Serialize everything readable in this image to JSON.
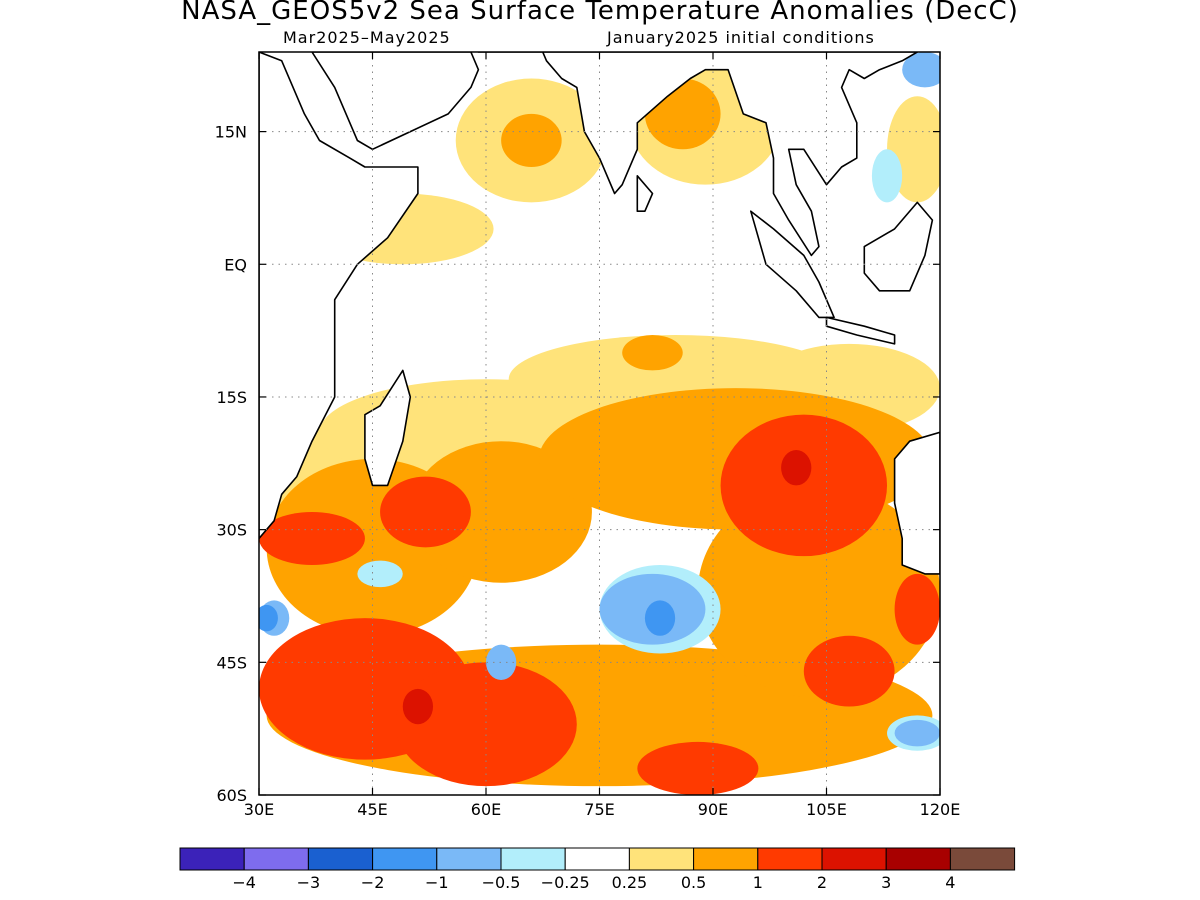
{
  "title": "NASA_GEOS5v2 Sea Surface Temperature Anomalies (DecC)",
  "subtitle_left": "Mar2025–May2025",
  "subtitle_right": "January2025 initial conditions",
  "map": {
    "lon_range": [
      30,
      120
    ],
    "lat_range": [
      -60,
      24
    ],
    "lon_ticks": [
      {
        "value": 30,
        "label": "30E"
      },
      {
        "value": 45,
        "label": "45E"
      },
      {
        "value": 60,
        "label": "60E"
      },
      {
        "value": 75,
        "label": "75E"
      },
      {
        "value": 90,
        "label": "90E"
      },
      {
        "value": 105,
        "label": "105E"
      },
      {
        "value": 120,
        "label": "120E"
      }
    ],
    "lat_ticks": [
      {
        "value": 15,
        "label": "15N"
      },
      {
        "value": 0,
        "label": "EQ"
      },
      {
        "value": -15,
        "label": "15S"
      },
      {
        "value": -30,
        "label": "30S"
      },
      {
        "value": -45,
        "label": "45S"
      },
      {
        "value": -60,
        "label": "60S"
      }
    ],
    "grid": "dotted"
  },
  "colorbar": {
    "colors": [
      "#3b22b9",
      "#7e6cee",
      "#1a60d0",
      "#3f96f2",
      "#7ab9f7",
      "#b2eefb",
      "#ffffff",
      "#ffe37a",
      "#ffa300",
      "#ff3a00",
      "#dc1200",
      "#a80000",
      "#7a4a3a"
    ],
    "labels": [
      "−4",
      "−3",
      "−2",
      "−1",
      "−0.5",
      "−0.25",
      "0.25",
      "0.5",
      "1",
      "2",
      "3",
      "4"
    ]
  },
  "anomaly_fields": [
    {
      "level": "0.5",
      "color": "#ffe37a",
      "blobs": [
        {
          "lon": 37,
          "lat": -24,
          "rx": 6,
          "ry": 6
        },
        {
          "lon": 60,
          "lat": -19,
          "rx": 22,
          "ry": 6
        },
        {
          "lon": 85,
          "lat": -13,
          "rx": 22,
          "ry": 5
        },
        {
          "lon": 108,
          "lat": -14,
          "rx": 12,
          "ry": 5
        },
        {
          "lon": 49,
          "lat": 4,
          "rx": 12,
          "ry": 4
        },
        {
          "lon": 66,
          "lat": 14,
          "rx": 10,
          "ry": 7
        },
        {
          "lon": 89,
          "lat": 16,
          "rx": 10,
          "ry": 7
        },
        {
          "lon": 117,
          "lat": 13,
          "rx": 4,
          "ry": 6
        }
      ]
    },
    {
      "level": "1",
      "color": "#ffa300",
      "blobs": [
        {
          "lon": 45,
          "lat": -32,
          "rx": 14,
          "ry": 10
        },
        {
          "lon": 62,
          "lat": -28,
          "rx": 12,
          "ry": 8
        },
        {
          "lon": 93,
          "lat": -22,
          "rx": 26,
          "ry": 8
        },
        {
          "lon": 75,
          "lat": -51,
          "rx": 44,
          "ry": 8
        },
        {
          "lon": 104,
          "lat": -37,
          "rx": 16,
          "ry": 12
        },
        {
          "lon": 82,
          "lat": -10,
          "rx": 4,
          "ry": 2
        },
        {
          "lon": 66,
          "lat": 14,
          "rx": 4,
          "ry": 3
        },
        {
          "lon": 86,
          "lat": 17,
          "rx": 5,
          "ry": 4
        }
      ]
    },
    {
      "level": "2",
      "color": "#ff3a00",
      "blobs": [
        {
          "lon": 44,
          "lat": -48,
          "rx": 14,
          "ry": 8
        },
        {
          "lon": 60,
          "lat": -52,
          "rx": 12,
          "ry": 7
        },
        {
          "lon": 37,
          "lat": -31,
          "rx": 7,
          "ry": 3
        },
        {
          "lon": 52,
          "lat": -28,
          "rx": 6,
          "ry": 4
        },
        {
          "lon": 102,
          "lat": -25,
          "rx": 11,
          "ry": 8
        },
        {
          "lon": 108,
          "lat": -46,
          "rx": 6,
          "ry": 4
        },
        {
          "lon": 117,
          "lat": -39,
          "rx": 3,
          "ry": 4
        },
        {
          "lon": 88,
          "lat": -57,
          "rx": 8,
          "ry": 3
        }
      ]
    },
    {
      "level": "3",
      "color": "#dc1200",
      "blobs": [
        {
          "lon": 101,
          "lat": -23,
          "rx": 2,
          "ry": 2
        },
        {
          "lon": 51,
          "lat": -50,
          "rx": 2,
          "ry": 2
        }
      ]
    },
    {
      "level": "-0.25",
      "color": "#b2eefb",
      "blobs": [
        {
          "lon": 83,
          "lat": -39,
          "rx": 8,
          "ry": 5
        },
        {
          "lon": 46,
          "lat": -35,
          "rx": 3,
          "ry": 1.5
        },
        {
          "lon": 117,
          "lat": -53,
          "rx": 4,
          "ry": 2
        },
        {
          "lon": 113,
          "lat": 10,
          "rx": 2,
          "ry": 3
        }
      ]
    },
    {
      "level": "-0.5",
      "color": "#7ab9f7",
      "blobs": [
        {
          "lon": 82,
          "lat": -39,
          "rx": 7,
          "ry": 4
        },
        {
          "lon": 62,
          "lat": -45,
          "rx": 2,
          "ry": 2
        },
        {
          "lon": 32,
          "lat": -40,
          "rx": 2,
          "ry": 2
        },
        {
          "lon": 117,
          "lat": -53,
          "rx": 3,
          "ry": 1.5
        },
        {
          "lon": 118,
          "lat": 22,
          "rx": 3,
          "ry": 2
        }
      ]
    },
    {
      "level": "-1",
      "color": "#3f96f2",
      "blobs": [
        {
          "lon": 83,
          "lat": -40,
          "rx": 2,
          "ry": 2
        },
        {
          "lon": 31,
          "lat": -40,
          "rx": 1.5,
          "ry": 1.5
        }
      ]
    }
  ],
  "land": [
    {
      "name": "Africa",
      "points": [
        [
          30,
          24
        ],
        [
          33,
          23
        ],
        [
          36,
          17
        ],
        [
          38,
          14
        ],
        [
          42,
          12
        ],
        [
          44,
          11
        ],
        [
          48,
          11
        ],
        [
          51,
          11
        ],
        [
          51,
          8
        ],
        [
          47,
          3
        ],
        [
          43,
          0
        ],
        [
          40,
          -4
        ],
        [
          40,
          -10
        ],
        [
          40,
          -15
        ],
        [
          37,
          -20
        ],
        [
          35,
          -24
        ],
        [
          33,
          -26
        ],
        [
          32,
          -29
        ],
        [
          30,
          -31
        ],
        [
          30,
          24
        ]
      ]
    },
    {
      "name": "Arabia",
      "points": [
        [
          37,
          24
        ],
        [
          40,
          20
        ],
        [
          43,
          14
        ],
        [
          45,
          13
        ],
        [
          50,
          15
        ],
        [
          55,
          17
        ],
        [
          58,
          20
        ],
        [
          59,
          22
        ],
        [
          58,
          24
        ],
        [
          37,
          24
        ]
      ]
    },
    {
      "name": "Asia-west",
      "points": [
        [
          59,
          24
        ],
        [
          63,
          25
        ],
        [
          67,
          25
        ],
        [
          68,
          23
        ],
        [
          70,
          21
        ],
        [
          72,
          20
        ],
        [
          73,
          15
        ],
        [
          75,
          12
        ],
        [
          77,
          8
        ],
        [
          78,
          9
        ],
        [
          80,
          13
        ],
        [
          80,
          16
        ],
        [
          84,
          19
        ],
        [
          87,
          21
        ],
        [
          89,
          22
        ],
        [
          92,
          22
        ],
        [
          94,
          17
        ],
        [
          97,
          16
        ],
        [
          98,
          12
        ],
        [
          98,
          8
        ],
        [
          100,
          5
        ],
        [
          103,
          1
        ],
        [
          104,
          2
        ],
        [
          103,
          6
        ],
        [
          101,
          9
        ],
        [
          100,
          13
        ],
        [
          102,
          13
        ],
        [
          105,
          9
        ],
        [
          107,
          11
        ],
        [
          109,
          12
        ],
        [
          109,
          16
        ],
        [
          107,
          20
        ],
        [
          108,
          22
        ],
        [
          110,
          21
        ],
        [
          112,
          22
        ],
        [
          115,
          23
        ],
        [
          117,
          24
        ],
        [
          59,
          24
        ]
      ]
    },
    {
      "name": "Madagascar",
      "points": [
        [
          49,
          -12
        ],
        [
          50,
          -15
        ],
        [
          49,
          -20
        ],
        [
          47,
          -25
        ],
        [
          45,
          -25
        ],
        [
          44,
          -22
        ],
        [
          44,
          -17
        ],
        [
          46,
          -16
        ],
        [
          49,
          -12
        ]
      ]
    },
    {
      "name": "Sri Lanka",
      "points": [
        [
          80,
          10
        ],
        [
          82,
          8
        ],
        [
          81,
          6
        ],
        [
          80,
          6
        ],
        [
          80,
          10
        ]
      ]
    },
    {
      "name": "Sumatra",
      "points": [
        [
          95,
          6
        ],
        [
          98,
          4
        ],
        [
          102,
          1
        ],
        [
          104,
          -2
        ],
        [
          106,
          -6
        ],
        [
          104,
          -6
        ],
        [
          101,
          -3
        ],
        [
          97,
          0
        ],
        [
          95,
          6
        ]
      ]
    },
    {
      "name": "Borneo",
      "points": [
        [
          110,
          2
        ],
        [
          114,
          4
        ],
        [
          117,
          7
        ],
        [
          119,
          5
        ],
        [
          118,
          1
        ],
        [
          116,
          -3
        ],
        [
          112,
          -3
        ],
        [
          110,
          -1
        ],
        [
          110,
          2
        ]
      ]
    },
    {
      "name": "Java",
      "points": [
        [
          105,
          -6
        ],
        [
          110,
          -7
        ],
        [
          114,
          -8
        ],
        [
          114,
          -9
        ],
        [
          109,
          -8
        ],
        [
          105,
          -7
        ],
        [
          105,
          -6
        ]
      ]
    },
    {
      "name": "Australia",
      "points": [
        [
          114,
          -22
        ],
        [
          116,
          -20
        ],
        [
          120,
          -19
        ],
        [
          120,
          -35
        ],
        [
          118,
          -35
        ],
        [
          115,
          -34
        ],
        [
          115,
          -31
        ],
        [
          114,
          -27
        ],
        [
          114,
          -22
        ]
      ]
    }
  ]
}
